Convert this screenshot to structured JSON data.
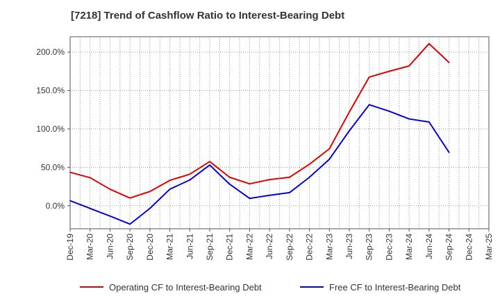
{
  "chart_data": {
    "type": "line",
    "title": "[7218]  Trend of Cashflow Ratio to Interest-Bearing Debt",
    "xlabel": "",
    "ylabel": "",
    "categories": [
      "Dec-19",
      "Mar-20",
      "Jun-20",
      "Sep-20",
      "Dec-20",
      "Mar-21",
      "Jun-21",
      "Sep-21",
      "Dec-21",
      "Mar-22",
      "Jun-22",
      "Sep-22",
      "Dec-22",
      "Mar-23",
      "Jun-23",
      "Sep-23",
      "Dec-23",
      "Mar-24",
      "Jun-24",
      "Sep-24",
      "Dec-24",
      "Mar-25"
    ],
    "ylim": [
      -30,
      220
    ],
    "yticks": [
      0,
      50,
      100,
      150,
      200
    ],
    "ytick_labels": [
      "0.0%",
      "50.0%",
      "100.0%",
      "150.0%",
      "200.0%"
    ],
    "grid": true,
    "legend_position": "bottom",
    "series": [
      {
        "name": "Operating CF to Interest-Bearing Debt",
        "color": "#e00000",
        "values": [
          43.5,
          36.5,
          21.5,
          10.0,
          18.5,
          33.0,
          41.0,
          57.5,
          37.0,
          28.5,
          34.0,
          37.0,
          54.0,
          74.0,
          122.0,
          167.5,
          175.0,
          182.0,
          211.0,
          186.5,
          null,
          null
        ]
      },
      {
        "name": "Free CF to Interest-Bearing Debt",
        "color": "#0000e0",
        "values": [
          6.5,
          -3.5,
          -13.5,
          -24.0,
          -3.5,
          21.5,
          33.5,
          53.0,
          28.0,
          9.5,
          13.5,
          17.0,
          37.0,
          60.5,
          97.5,
          131.5,
          123.0,
          113.0,
          109.0,
          69.5,
          null,
          null
        ]
      }
    ]
  }
}
